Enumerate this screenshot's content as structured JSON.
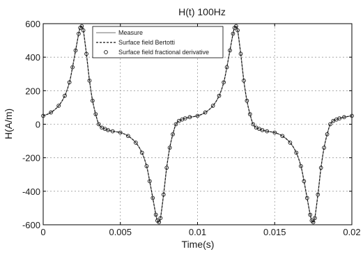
{
  "chart_data": {
    "type": "line",
    "title": "H(t) 100Hz",
    "xlabel": "Time(s)",
    "ylabel": "H(A/m)",
    "xlim": [
      0,
      0.02
    ],
    "ylim": [
      -600,
      600
    ],
    "x_ticks": [
      0,
      0.005,
      0.01,
      0.015,
      0.02
    ],
    "x_tick_labels": [
      "0",
      "0.005",
      "0.01",
      "0.015",
      "0.02"
    ],
    "y_ticks": [
      -600,
      -400,
      -200,
      0,
      200,
      400,
      600
    ],
    "y_tick_labels": [
      "-600",
      "-400",
      "-200",
      "0",
      "200",
      "400",
      "600"
    ],
    "grid": true,
    "legend_position": "top-center",
    "period": 0.01,
    "x": [
      0.0,
      0.0005,
      0.001,
      0.0014,
      0.0017,
      0.0019,
      0.0021,
      0.0023,
      0.0024,
      0.0025,
      0.0026,
      0.0028,
      0.003,
      0.0032,
      0.0034,
      0.0036,
      0.0038,
      0.004,
      0.0042,
      0.0045,
      0.005,
      0.0055,
      0.006,
      0.0064,
      0.0067,
      0.0069,
      0.0071,
      0.0073,
      0.0074,
      0.0075,
      0.0076,
      0.0078,
      0.008,
      0.0082,
      0.0084,
      0.0086,
      0.0088,
      0.009,
      0.0092,
      0.0095,
      0.01,
      0.0105,
      0.011,
      0.0114,
      0.0117,
      0.0119,
      0.0121,
      0.0123,
      0.0124,
      0.0125,
      0.0126,
      0.0128,
      0.013,
      0.0132,
      0.0134,
      0.0136,
      0.0138,
      0.014,
      0.0142,
      0.0145,
      0.015,
      0.0155,
      0.016,
      0.0164,
      0.0167,
      0.0169,
      0.0171,
      0.0173,
      0.0174,
      0.0175,
      0.0176,
      0.0178,
      0.018,
      0.0182,
      0.0184,
      0.0186,
      0.0188,
      0.019,
      0.0192,
      0.0195,
      0.02
    ],
    "series": [
      {
        "name": "Measure",
        "style": "solid",
        "color": "#8c8c8c",
        "values": [
          50,
          70,
          110,
          170,
          250,
          340,
          440,
          540,
          575,
          585,
          560,
          420,
          260,
          140,
          60,
          0,
          -20,
          -28,
          -35,
          -42,
          -50,
          -70,
          -110,
          -170,
          -250,
          -340,
          -440,
          -540,
          -575,
          -585,
          -560,
          -420,
          -260,
          -140,
          -60,
          0,
          20,
          28,
          35,
          42,
          50,
          70,
          110,
          170,
          250,
          340,
          440,
          540,
          575,
          585,
          560,
          420,
          260,
          140,
          60,
          0,
          -20,
          -28,
          -35,
          -42,
          -50,
          -70,
          -110,
          -170,
          -250,
          -340,
          -440,
          -540,
          -575,
          -585,
          -560,
          -420,
          -260,
          -140,
          -60,
          0,
          20,
          28,
          35,
          42,
          50
        ]
      },
      {
        "name": "Surface field Bertotti",
        "style": "dashed",
        "color": "#111111",
        "values": [
          50,
          70,
          110,
          170,
          250,
          340,
          440,
          540,
          575,
          585,
          560,
          420,
          260,
          140,
          60,
          0,
          -20,
          -28,
          -35,
          -42,
          -50,
          -70,
          -110,
          -170,
          -250,
          -340,
          -440,
          -540,
          -575,
          -585,
          -560,
          -420,
          -260,
          -140,
          -60,
          0,
          20,
          28,
          35,
          42,
          50,
          70,
          110,
          170,
          250,
          340,
          440,
          540,
          575,
          585,
          560,
          420,
          260,
          140,
          60,
          0,
          -20,
          -28,
          -35,
          -42,
          -50,
          -70,
          -110,
          -170,
          -250,
          -340,
          -440,
          -540,
          -575,
          -585,
          -560,
          -420,
          -260,
          -140,
          -60,
          0,
          20,
          28,
          35,
          42,
          50
        ]
      },
      {
        "name": "Surface field fractional derivative",
        "style": "circle-markers",
        "color": "#111111",
        "values": [
          50,
          70,
          110,
          170,
          250,
          340,
          440,
          540,
          575,
          585,
          560,
          420,
          260,
          140,
          60,
          0,
          -20,
          -28,
          -35,
          -42,
          -50,
          -70,
          -110,
          -170,
          -250,
          -340,
          -440,
          -540,
          -575,
          -585,
          -560,
          -420,
          -260,
          -140,
          -60,
          0,
          20,
          28,
          35,
          42,
          50,
          70,
          110,
          170,
          250,
          340,
          440,
          540,
          575,
          585,
          560,
          420,
          260,
          140,
          60,
          0,
          -20,
          -28,
          -35,
          -42,
          -50,
          -70,
          -110,
          -170,
          -250,
          -340,
          -440,
          -540,
          -575,
          -585,
          -560,
          -420,
          -260,
          -140,
          -60,
          0,
          20,
          28,
          35,
          42,
          50
        ]
      }
    ]
  }
}
